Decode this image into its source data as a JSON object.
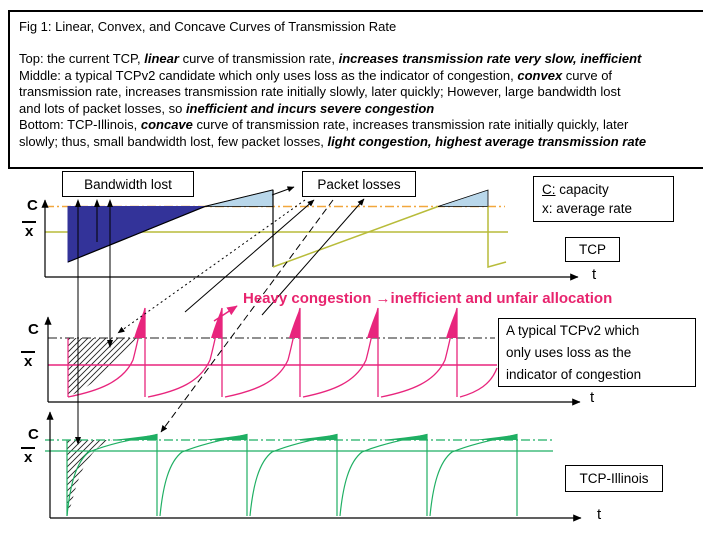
{
  "title": "Fig 1: Linear, Convex, and Concave Curves of Transmission Rate",
  "description_lines": [
    [
      {
        "t": "Top: the current TCP, "
      },
      {
        "t": "linear",
        "bi": 1
      },
      {
        "t": " curve of transmission rate, "
      },
      {
        "t": "increases transmission rate very slow, inefficient",
        "bi": 1
      }
    ],
    [
      {
        "t": "Middle: a typical TCPv2 candidate which only uses loss as the indicator of congestion, "
      },
      {
        "t": "convex",
        "bi": 1
      },
      {
        "t": " curve of"
      }
    ],
    [
      {
        "t": "transmission rate, increases transmission rate initially slowly, later quickly; However, large bandwidth lost"
      }
    ],
    [
      {
        "t": "and lots of packet losses, so "
      },
      {
        "t": "inefficient and incurs severe congestion",
        "bi": 1
      }
    ],
    [
      {
        "t": "Bottom: TCP-Illinois, "
      },
      {
        "t": "concave",
        "bi": 1
      },
      {
        "t": " curve of transmission rate, increases transmission rate initially quickly, later"
      }
    ],
    [
      {
        "t": "slowly; thus, small bandwidth lost, few packet losses, "
      },
      {
        "t": "light congestion, highest average transmission rate",
        "bi": 1
      }
    ]
  ],
  "plot_labels": {
    "bandwidth_lost": "Bandwidth lost",
    "packet_losses": "Packet losses",
    "legend_line1": "C: capacity",
    "legend_line2": "x: average rate",
    "tcp": "TCP",
    "heavy_congestion": "Heavy congestion →inefficient and unfair allocation",
    "tcpv2_lines": [
      "A typical TCPv2 which",
      "only uses loss as the",
      "indicator of congestion"
    ],
    "tcp_illinois": "TCP-Illinois"
  },
  "axes": {
    "capacity": "C",
    "average": "x",
    "time": "t"
  },
  "colors": {
    "navy_fill": "#333399",
    "loss_triangle_fill": "#b9d7ea",
    "yellow_green": "#b8bc3a",
    "capacity_orange": "#f2a73d",
    "pink": "#e8257d",
    "green": "#1faf63",
    "heavy_text": "#e8246e"
  },
  "chart_data": {
    "type": "line",
    "subplots": [
      {
        "flow": "TCP",
        "curve_shape": "linear sawtooth",
        "periods": 2,
        "shaded": "bandwidth lost (navy area), packet losses (light blue triangles)"
      },
      {
        "flow": "A typical TCPv2 candidate",
        "curve_shape": "convex sawtooth",
        "periods": 5,
        "shaded": "bandwidth lost (hatched), packet losses (pink spikes)"
      },
      {
        "flow": "TCP-Illinois",
        "curve_shape": "concave sawtooth",
        "periods": 5,
        "shaded": "bandwidth lost (hatched, small), packet losses (green slivers, few)"
      }
    ],
    "y_references": [
      "C = capacity (dash-dot line)",
      "x = average rate (solid line)"
    ],
    "xlabel": "t"
  }
}
